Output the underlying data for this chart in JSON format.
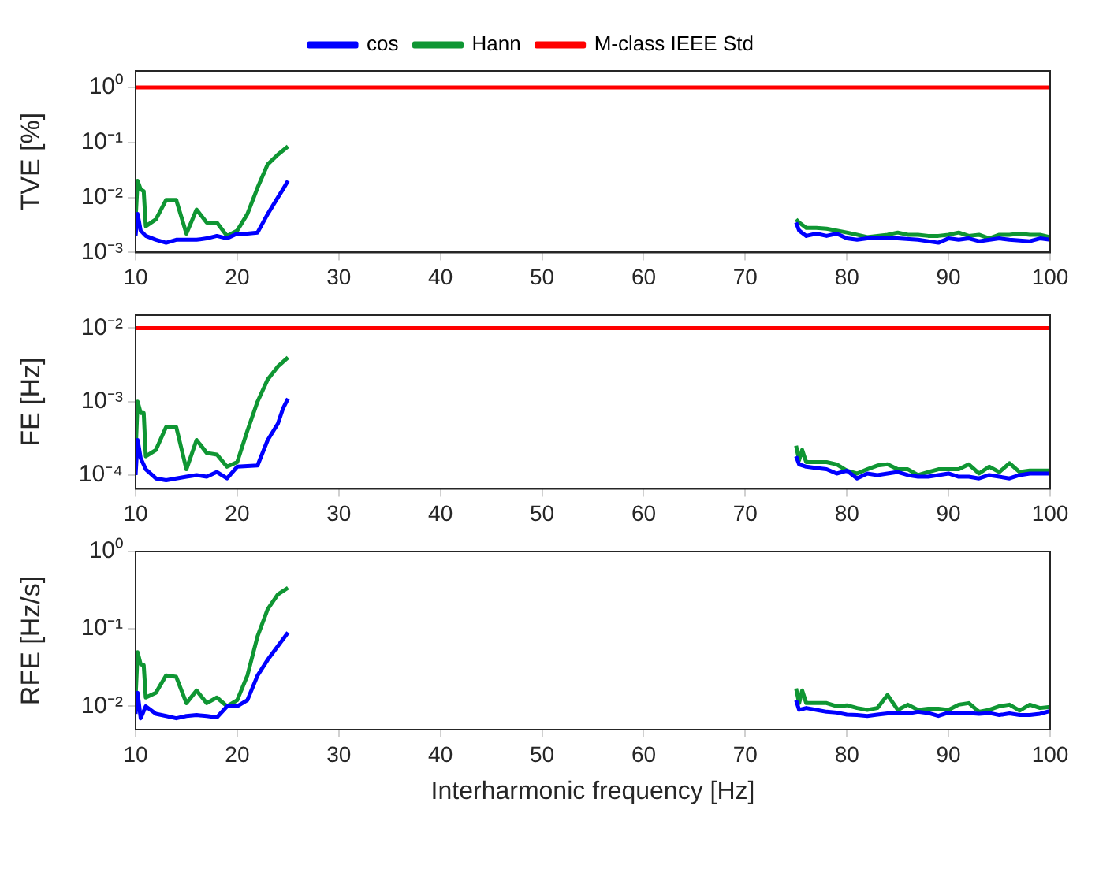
{
  "chart_data": [
    {
      "type": "line",
      "ylabel": "TVE [%]",
      "log": true,
      "grid": false,
      "legend": "top",
      "marker": "none",
      "line_style": "solid",
      "xlim": [
        10,
        100
      ],
      "xticks": [
        10,
        20,
        30,
        40,
        50,
        60,
        70,
        80,
        90,
        100
      ],
      "ylim": [
        0.001,
        2
      ],
      "yticks": [
        {
          "value": 0.001,
          "label": "10⁻³"
        },
        {
          "value": 0.01,
          "label": "10⁻²"
        },
        {
          "value": 0.1,
          "label": "10⁻¹"
        },
        {
          "value": 1,
          "label": "10⁰"
        }
      ],
      "series": [
        {
          "name": "cos",
          "color": "#0000ff",
          "x": [
            10,
            10.2,
            10.5,
            11,
            12,
            13,
            14,
            16,
            17,
            18,
            19,
            20,
            21,
            22,
            23,
            24,
            24.5,
            25,
            50,
            75,
            75.3,
            76,
            77,
            78,
            79,
            80,
            81,
            82,
            83,
            85,
            87,
            89,
            90,
            91,
            92,
            93,
            95,
            96,
            98,
            99,
            100
          ],
          "values": [
            0.002,
            0.005,
            0.0025,
            0.002,
            0.0017,
            0.0015,
            0.0017,
            0.0017,
            0.0018,
            0.002,
            0.0018,
            0.0022,
            0.0022,
            0.0023,
            0.005,
            0.01,
            0.014,
            0.02,
            null,
            0.0035,
            0.0025,
            0.002,
            0.0022,
            0.002,
            0.0022,
            0.0018,
            0.0017,
            0.0018,
            0.0018,
            0.0018,
            0.0017,
            0.0015,
            0.0018,
            0.0017,
            0.0018,
            0.0016,
            0.0018,
            0.0017,
            0.0016,
            0.0018,
            0.0017
          ]
        },
        {
          "name": "Hann",
          "color": "#0f9633",
          "x": [
            10,
            10.2,
            10.5,
            10.8,
            11,
            12,
            13,
            14,
            15,
            16,
            17,
            18,
            19,
            20,
            21,
            22,
            23,
            24,
            25,
            50,
            75,
            75.3,
            76,
            77,
            78,
            79,
            80,
            81,
            82,
            83,
            84,
            85,
            86,
            87,
            88,
            89,
            90,
            91,
            92,
            93,
            94,
            95,
            96,
            97,
            98,
            99,
            100
          ],
          "values": [
            0.004,
            0.02,
            0.014,
            0.013,
            0.003,
            0.004,
            0.009,
            0.009,
            0.0022,
            0.006,
            0.0035,
            0.0035,
            0.002,
            0.0025,
            0.005,
            0.015,
            0.04,
            0.06,
            0.085,
            null,
            0.004,
            0.0035,
            0.0028,
            0.0028,
            0.0027,
            0.0025,
            0.0023,
            0.0021,
            0.0019,
            0.002,
            0.0021,
            0.0023,
            0.0021,
            0.0021,
            0.002,
            0.002,
            0.0021,
            0.0023,
            0.002,
            0.0021,
            0.0018,
            0.0021,
            0.0021,
            0.0022,
            0.0021,
            0.0021,
            0.0019
          ]
        },
        {
          "name": "M-class IEEE Std",
          "color": "#ff0000",
          "x": [
            10,
            100
          ],
          "values": [
            1,
            1
          ]
        }
      ]
    },
    {
      "type": "line",
      "ylabel": "FE [Hz]",
      "log": true,
      "grid": false,
      "marker": "none",
      "line_style": "solid",
      "xlim": [
        10,
        100
      ],
      "xticks": [
        10,
        20,
        30,
        40,
        50,
        60,
        70,
        80,
        90,
        100
      ],
      "ylim": [
        6.5e-05,
        0.015
      ],
      "yticks": [
        {
          "value": 0.0001,
          "label": "10⁻⁴"
        },
        {
          "value": 0.001,
          "label": "10⁻³"
        },
        {
          "value": 0.01,
          "label": "10⁻²"
        }
      ],
      "series": [
        {
          "color": "#0000ff",
          "x": [
            10,
            10.2,
            10.5,
            11,
            12,
            13,
            14,
            15,
            16,
            17,
            18,
            19,
            20,
            22,
            23,
            24,
            24.5,
            25,
            50,
            75,
            75.3,
            76,
            77,
            78,
            79,
            80,
            81,
            82,
            83,
            84,
            85,
            86,
            87,
            88,
            90,
            91,
            92,
            93,
            94,
            95,
            96,
            97,
            98,
            99,
            100
          ],
          "values": [
            0.0001,
            0.0003,
            0.00017,
            0.00012,
            9e-05,
            8.5e-05,
            9e-05,
            9.5e-05,
            0.0001,
            9.5e-05,
            0.00011,
            9e-05,
            0.00013,
            0.000135,
            0.0003,
            0.0005,
            0.0008,
            0.0011,
            null,
            0.00018,
            0.00014,
            0.00013,
            0.000125,
            0.00012,
            0.000105,
            0.000115,
            9e-05,
            0.000105,
            0.0001,
            0.000105,
            0.00011,
            0.0001,
            9.5e-05,
            9.5e-05,
            0.000105,
            9.5e-05,
            9.5e-05,
            9e-05,
            0.0001,
            9.5e-05,
            9e-05,
            0.0001,
            0.000105,
            0.000105,
            0.000105
          ]
        },
        {
          "color": "#0f9633",
          "x": [
            10,
            10.2,
            10.5,
            10.8,
            11,
            12,
            13,
            14,
            15,
            16,
            17,
            18,
            19,
            20,
            21,
            22,
            23,
            24,
            25,
            50,
            75,
            75.3,
            75.6,
            76,
            78,
            79,
            80,
            81,
            82,
            83,
            84,
            85,
            86,
            87,
            88,
            89,
            90,
            91,
            92,
            93,
            94,
            95,
            96,
            97,
            98,
            100
          ],
          "values": [
            0.0002,
            0.001,
            0.0007,
            0.0007,
            0.00018,
            0.00022,
            0.00045,
            0.00045,
            0.00012,
            0.0003,
            0.0002,
            0.00019,
            0.00013,
            0.00015,
            0.0004,
            0.001,
            0.002,
            0.003,
            0.004,
            null,
            0.00025,
            0.00016,
            0.00022,
            0.00015,
            0.00015,
            0.00014,
            0.000115,
            0.000105,
            0.00012,
            0.000135,
            0.00014,
            0.00012,
            0.00012,
            0.0001,
            0.00011,
            0.00012,
            0.00012,
            0.00012,
            0.00014,
            0.000105,
            0.00013,
            0.00011,
            0.000145,
            0.00011,
            0.000115,
            0.000115
          ]
        },
        {
          "color": "#ff0000",
          "x": [
            10,
            100
          ],
          "values": [
            0.01,
            0.01
          ]
        }
      ]
    },
    {
      "type": "line",
      "ylabel": "RFE [Hz/s]",
      "xlabel": "Interharmonic frequency [Hz]",
      "log": true,
      "grid": false,
      "marker": "none",
      "line_style": "solid",
      "xlim": [
        10,
        100
      ],
      "xticks": [
        10,
        20,
        30,
        40,
        50,
        60,
        70,
        80,
        90,
        100
      ],
      "ylim": [
        0.005,
        1
      ],
      "yticks": [
        {
          "value": 0.01,
          "label": "10⁻²"
        },
        {
          "value": 0.1,
          "label": "10⁻¹"
        },
        {
          "value": 1,
          "label": "10⁰"
        }
      ],
      "series": [
        {
          "color": "#0000ff",
          "x": [
            10,
            10.2,
            10.5,
            11,
            12,
            13,
            14,
            15,
            16,
            17,
            18,
            19,
            20,
            21,
            22,
            23,
            24,
            25,
            50,
            75,
            75.3,
            76,
            77,
            78,
            79,
            80,
            81,
            82,
            83,
            84,
            85,
            86,
            87,
            88,
            89,
            90,
            91,
            92,
            93,
            94,
            95,
            96,
            97,
            98,
            99,
            100
          ],
          "values": [
            0.008,
            0.015,
            0.007,
            0.01,
            0.008,
            0.0075,
            0.007,
            0.0075,
            0.0077,
            0.0075,
            0.0072,
            0.01,
            0.01,
            0.012,
            0.025,
            0.04,
            0.06,
            0.09,
            null,
            0.012,
            0.009,
            0.0095,
            0.009,
            0.0085,
            0.0083,
            0.0078,
            0.0077,
            0.0075,
            0.0078,
            0.0081,
            0.0081,
            0.0081,
            0.0085,
            0.0082,
            0.0075,
            0.0083,
            0.0082,
            0.0082,
            0.008,
            0.0082,
            0.0077,
            0.0081,
            0.0077,
            0.0077,
            0.008,
            0.0087
          ]
        },
        {
          "color": "#0f9633",
          "x": [
            10,
            10.2,
            10.5,
            10.8,
            11,
            12,
            13,
            14,
            15,
            16,
            17,
            18,
            19,
            20,
            21,
            22,
            23,
            24,
            25,
            50,
            75,
            75.3,
            75.6,
            76,
            77,
            78,
            79,
            80,
            81,
            82,
            83,
            84,
            85,
            86,
            87,
            88,
            89,
            90,
            91,
            92,
            93,
            94,
            95,
            96,
            97,
            98,
            99,
            100
          ],
          "values": [
            0.013,
            0.05,
            0.035,
            0.034,
            0.013,
            0.015,
            0.025,
            0.024,
            0.011,
            0.016,
            0.011,
            0.013,
            0.01,
            0.012,
            0.025,
            0.08,
            0.18,
            0.28,
            0.34,
            null,
            0.017,
            0.011,
            0.016,
            0.011,
            0.011,
            0.011,
            0.01,
            0.0103,
            0.0095,
            0.009,
            0.0095,
            0.014,
            0.009,
            0.0105,
            0.009,
            0.0093,
            0.0093,
            0.009,
            0.0105,
            0.011,
            0.0085,
            0.009,
            0.01,
            0.0105,
            0.0088,
            0.0105,
            0.0095,
            0.0098
          ]
        }
      ]
    }
  ]
}
